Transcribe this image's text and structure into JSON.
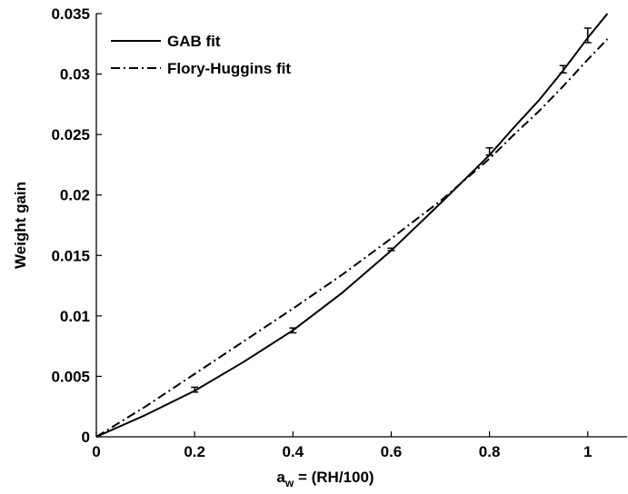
{
  "chart_data": {
    "type": "line",
    "xlabel": "a",
    "xlabel_subscript": "w",
    "xlabel_suffix": " = (RH/100)",
    "ylabel": "Weight gain",
    "xlim": [
      0,
      1.08
    ],
    "ylim": [
      0,
      0.035
    ],
    "xticks": [
      0,
      0.2,
      0.4,
      0.6,
      0.8,
      1
    ],
    "xtick_labels": [
      "0",
      "0.2",
      "0.4",
      "0.6",
      "0.8",
      "1"
    ],
    "yticks": [
      0,
      0.005,
      0.01,
      0.015,
      0.02,
      0.025,
      0.03,
      0.035
    ],
    "ytick_labels": [
      "0",
      "0.005",
      "0.01",
      "0.015",
      "0.02",
      "0.025",
      "0.03",
      "0.035"
    ],
    "grid": false,
    "legend_position": "top-left",
    "series": [
      {
        "name": "GAB fit",
        "style": "solid",
        "x": [
          0,
          0.1,
          0.2,
          0.3,
          0.4,
          0.5,
          0.6,
          0.7,
          0.8,
          0.85,
          0.9,
          0.95,
          1.0,
          1.04
        ],
        "y": [
          0,
          0.0018,
          0.0038,
          0.0062,
          0.0088,
          0.0119,
          0.0154,
          0.0193,
          0.0233,
          0.0256,
          0.0278,
          0.0303,
          0.033,
          0.035
        ]
      },
      {
        "name": "Flory-Huggins fit",
        "style": "dash-dot",
        "x": [
          0,
          0.1,
          0.2,
          0.3,
          0.4,
          0.5,
          0.6,
          0.7,
          0.8,
          0.85,
          0.9,
          0.95,
          1.0,
          1.04
        ],
        "y": [
          0,
          0.0025,
          0.0052,
          0.0079,
          0.0106,
          0.0134,
          0.0164,
          0.0195,
          0.023,
          0.025,
          0.0269,
          0.029,
          0.0312,
          0.0329
        ]
      }
    ],
    "error_bars": {
      "x": [
        0.2,
        0.4,
        0.6,
        0.8,
        0.95,
        1.0
      ],
      "y": [
        0.0039,
        0.0088,
        0.0155,
        0.0236,
        0.0304,
        0.0332
      ],
      "err": [
        0.0002,
        0.0002,
        0.0001,
        0.0003,
        0.0003,
        0.0006
      ]
    }
  }
}
